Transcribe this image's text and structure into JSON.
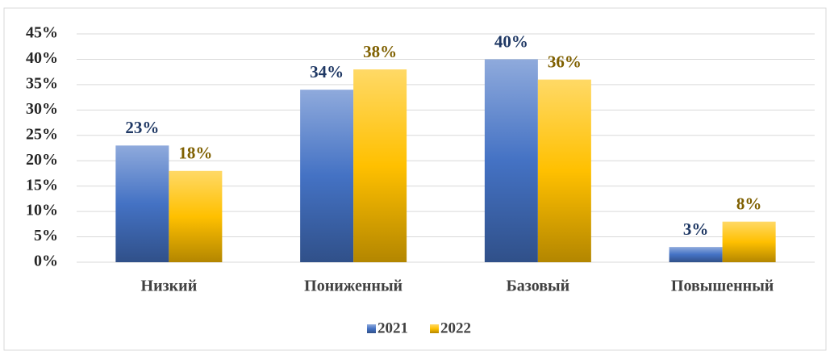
{
  "chart_data": {
    "type": "bar",
    "categories": [
      "Низкий",
      "Пониженный",
      "Базовый",
      "Повышенный"
    ],
    "series": [
      {
        "name": "2021",
        "color": "#4472c4",
        "label_color": "#1f3864",
        "values": [
          23,
          34,
          40,
          3
        ],
        "value_labels": [
          "23%",
          "34%",
          "40%",
          "3%"
        ]
      },
      {
        "name": "2022",
        "color": "#ffc000",
        "label_color": "#7f6000",
        "values": [
          18,
          38,
          36,
          8
        ],
        "value_labels": [
          "18%",
          "38%",
          "36%",
          "8%"
        ]
      }
    ],
    "ylim": [
      0,
      45
    ],
    "yticks": [
      {
        "value": 0,
        "label": "0%"
      },
      {
        "value": 5,
        "label": "5%"
      },
      {
        "value": 10,
        "label": "10%"
      },
      {
        "value": 15,
        "label": "15%"
      },
      {
        "value": 20,
        "label": "20%"
      },
      {
        "value": 25,
        "label": "25%"
      },
      {
        "value": 30,
        "label": "30%"
      },
      {
        "value": 35,
        "label": "35%"
      },
      {
        "value": 40,
        "label": "40%"
      },
      {
        "value": 45,
        "label": "45%"
      }
    ],
    "grid": true,
    "legend": "bottom"
  }
}
